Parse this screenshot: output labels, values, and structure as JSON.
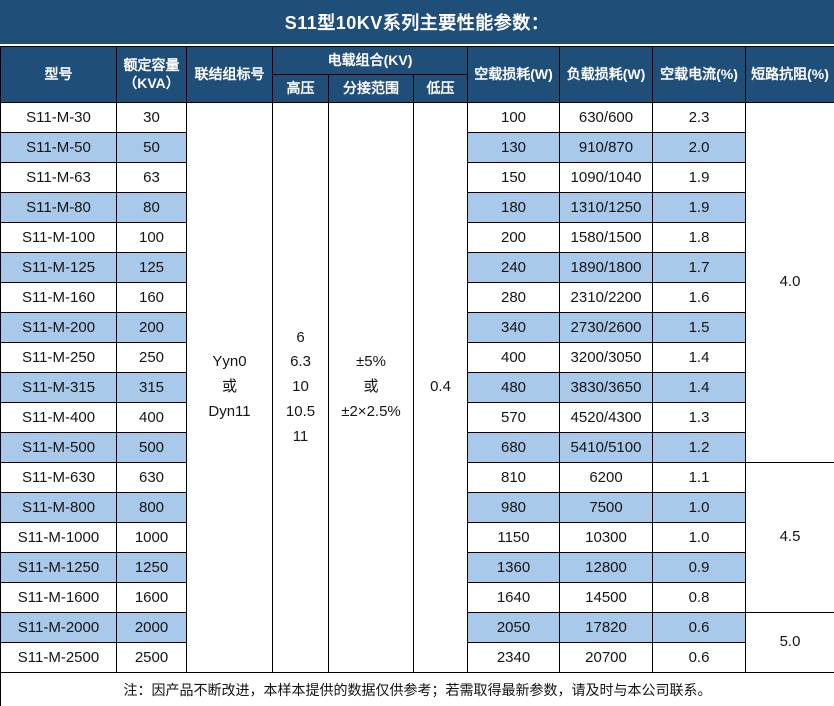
{
  "title": "S11型10KV系列主要性能参数：",
  "note": "注：因产品不断改进，本样本提供的数据仅供参考；若需取得最新参数，请及时与本公司联系。",
  "colors": {
    "header_bg": "#1F4E79",
    "band_blue": "#A9C9EA",
    "border": "#000000",
    "header_text": "#FFFFFF",
    "body_text": "#151515"
  },
  "header": {
    "model": "型号",
    "capacity_line1": "额定容量",
    "capacity_line2": "（KVA）",
    "connection": "联结组标号",
    "voltage_group": "电载组合(KV)",
    "high_voltage": "高压",
    "tap_range": "分接范围",
    "low_voltage": "低压",
    "no_load_loss": "空载损耗(W)",
    "load_loss": "负载损耗(W)",
    "no_load_current": "空载电流(%)",
    "impedance": "短路抗阻(%)"
  },
  "merged_cells": {
    "connection_lines": [
      "Yyn0",
      "或",
      "Dyn11"
    ],
    "high_voltage_lines": [
      "6",
      "6.3",
      "10",
      "10.5",
      "11"
    ],
    "tap_range_lines": [
      "±5%",
      "或",
      "±2×2.5%"
    ],
    "low_voltage": "0.4"
  },
  "impedance_groups": [
    {
      "value": "4.0",
      "span": 12
    },
    {
      "value": "4.5",
      "span": 5
    },
    {
      "value": "5.0",
      "span": 2
    }
  ],
  "rows": [
    {
      "model": "S11-M-30",
      "capacity": "30",
      "no_load_loss": "100",
      "load_loss": "630/600",
      "no_load_current": "2.3"
    },
    {
      "model": "S11-M-50",
      "capacity": "50",
      "no_load_loss": "130",
      "load_loss": "910/870",
      "no_load_current": "2.0"
    },
    {
      "model": "S11-M-63",
      "capacity": "63",
      "no_load_loss": "150",
      "load_loss": "1090/1040",
      "no_load_current": "1.9"
    },
    {
      "model": "S11-M-80",
      "capacity": "80",
      "no_load_loss": "180",
      "load_loss": "1310/1250",
      "no_load_current": "1.9"
    },
    {
      "model": "S11-M-100",
      "capacity": "100",
      "no_load_loss": "200",
      "load_loss": "1580/1500",
      "no_load_current": "1.8"
    },
    {
      "model": "S11-M-125",
      "capacity": "125",
      "no_load_loss": "240",
      "load_loss": "1890/1800",
      "no_load_current": "1.7"
    },
    {
      "model": "S11-M-160",
      "capacity": "160",
      "no_load_loss": "280",
      "load_loss": "2310/2200",
      "no_load_current": "1.6"
    },
    {
      "model": "S11-M-200",
      "capacity": "200",
      "no_load_loss": "340",
      "load_loss": "2730/2600",
      "no_load_current": "1.5"
    },
    {
      "model": "S11-M-250",
      "capacity": "250",
      "no_load_loss": "400",
      "load_loss": "3200/3050",
      "no_load_current": "1.4"
    },
    {
      "model": "S11-M-315",
      "capacity": "315",
      "no_load_loss": "480",
      "load_loss": "3830/3650",
      "no_load_current": "1.4"
    },
    {
      "model": "S11-M-400",
      "capacity": "400",
      "no_load_loss": "570",
      "load_loss": "4520/4300",
      "no_load_current": "1.3"
    },
    {
      "model": "S11-M-500",
      "capacity": "500",
      "no_load_loss": "680",
      "load_loss": "5410/5100",
      "no_load_current": "1.2"
    },
    {
      "model": "S11-M-630",
      "capacity": "630",
      "no_load_loss": "810",
      "load_loss": "6200",
      "no_load_current": "1.1"
    },
    {
      "model": "S11-M-800",
      "capacity": "800",
      "no_load_loss": "980",
      "load_loss": "7500",
      "no_load_current": "1.0"
    },
    {
      "model": "S11-M-1000",
      "capacity": "1000",
      "no_load_loss": "1150",
      "load_loss": "10300",
      "no_load_current": "1.0"
    },
    {
      "model": "S11-M-1250",
      "capacity": "1250",
      "no_load_loss": "1360",
      "load_loss": "12800",
      "no_load_current": "0.9"
    },
    {
      "model": "S11-M-1600",
      "capacity": "1600",
      "no_load_loss": "1640",
      "load_loss": "14500",
      "no_load_current": "0.8"
    },
    {
      "model": "S11-M-2000",
      "capacity": "2000",
      "no_load_loss": "2050",
      "load_loss": "17820",
      "no_load_current": "0.6"
    },
    {
      "model": "S11-M-2500",
      "capacity": "2500",
      "no_load_loss": "2340",
      "load_loss": "20700",
      "no_load_current": "0.6"
    }
  ]
}
